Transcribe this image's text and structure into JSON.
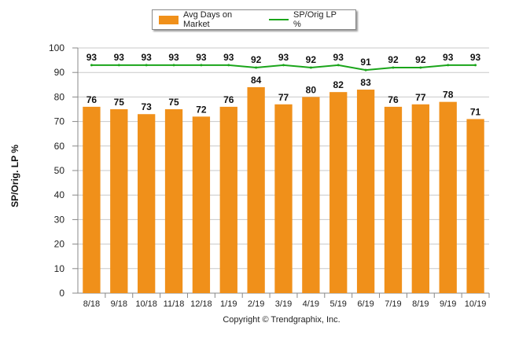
{
  "legend": {
    "bar_label": "Avg Days on Market",
    "line_label": "SP/Orig LP %"
  },
  "footer": {
    "copyright": "Copyright © Trendgraphix, Inc."
  },
  "colors": {
    "bar": "#f0901a",
    "line": "#1aa51a",
    "grid": "#c8c8c8",
    "axis": "#888888"
  },
  "chart_data": {
    "type": "bar",
    "title": "",
    "xlabel": "",
    "ylabel": "SP/Orig. LP %",
    "ylim": [
      0,
      100
    ],
    "yticks": [
      0,
      10,
      20,
      30,
      40,
      50,
      60,
      70,
      80,
      90,
      100
    ],
    "grid": true,
    "legend_position": "top-center",
    "categories": [
      "8/18",
      "9/18",
      "10/18",
      "11/18",
      "12/18",
      "1/19",
      "2/19",
      "3/19",
      "4/19",
      "5/19",
      "6/19",
      "7/19",
      "8/19",
      "9/19",
      "10/19"
    ],
    "series": [
      {
        "name": "Avg Days on Market",
        "type": "bar",
        "values": [
          76,
          75,
          73,
          75,
          72,
          76,
          84,
          77,
          80,
          82,
          83,
          76,
          77,
          78,
          71
        ]
      },
      {
        "name": "SP/Orig LP %",
        "type": "line",
        "values": [
          93,
          93,
          93,
          93,
          93,
          93,
          92,
          93,
          92,
          93,
          91,
          92,
          92,
          93,
          93
        ]
      }
    ]
  }
}
